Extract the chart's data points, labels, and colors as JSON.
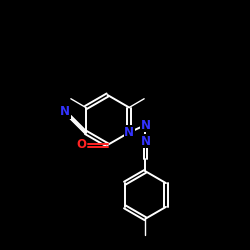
{
  "background_color": "#000000",
  "bond_color": "#ffffff",
  "n_color": "#3333ff",
  "o_color": "#ff2222",
  "lw": 1.4,
  "lw2": 1.0,
  "xlim": [
    0,
    10
  ],
  "ylim": [
    0,
    10
  ]
}
